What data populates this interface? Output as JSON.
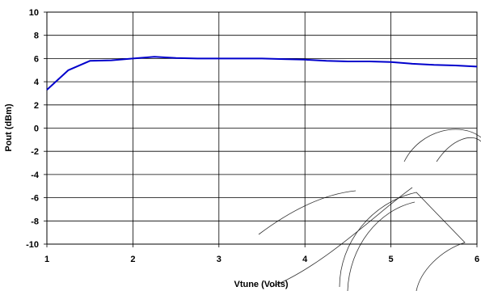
{
  "chart_data": {
    "type": "line",
    "title": "",
    "xlabel": "Vtune (Volts)",
    "ylabel": "Pout (dBm)",
    "xlim": [
      1,
      6
    ],
    "ylim": [
      -10,
      10
    ],
    "x_ticks": [
      "1",
      "2",
      "3",
      "4",
      "5",
      "6"
    ],
    "y_ticks": [
      "10",
      "8",
      "6",
      "4",
      "2",
      "0",
      "-2",
      "-4",
      "-6",
      "-8",
      "-10"
    ],
    "grid": true,
    "series": [
      {
        "color": "#0000cc",
        "x": [
          1.0,
          1.25,
          1.5,
          1.75,
          2.0,
          2.25,
          2.5,
          2.75,
          3.0,
          3.25,
          3.5,
          3.75,
          4.0,
          4.25,
          4.5,
          4.75,
          5.0,
          5.25,
          5.5,
          5.75,
          6.0
        ],
        "y": [
          3.3,
          5.0,
          5.8,
          5.85,
          6.0,
          6.15,
          6.05,
          6.0,
          6.0,
          6.0,
          6.0,
          5.95,
          5.9,
          5.8,
          5.75,
          5.75,
          5.7,
          5.55,
          5.45,
          5.4,
          5.3
        ]
      }
    ]
  }
}
